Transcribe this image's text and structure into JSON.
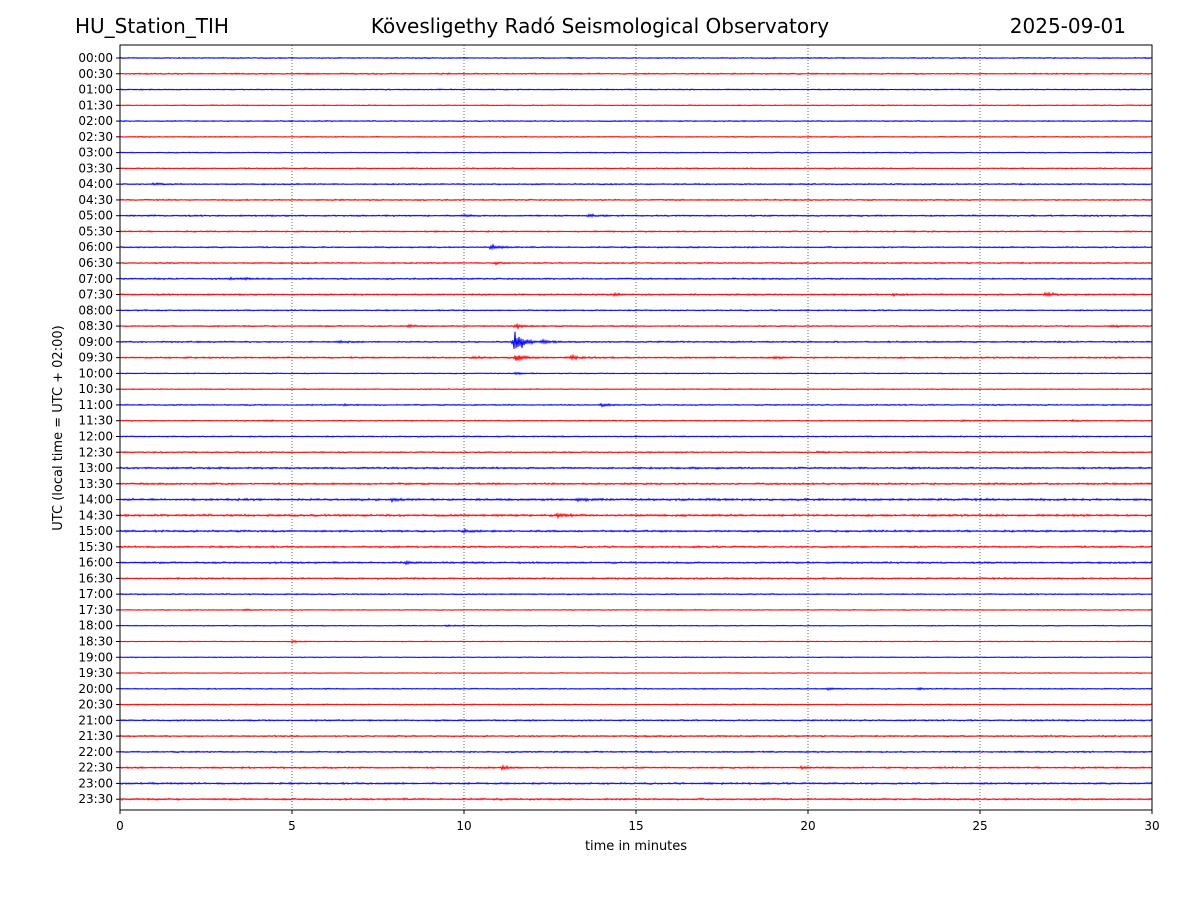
{
  "header": {
    "station": "HU_Station_TIH",
    "observatory": "Kövesligethy Radó Seismological Observatory",
    "date": "2025-09-01"
  },
  "chart_data": {
    "type": "line",
    "title": "Kövesligethy Radó Seismological Observatory",
    "xlabel": "time in minutes",
    "ylabel": "UTC (local time = UTC + 02:00)",
    "xlim": [
      0,
      30
    ],
    "x_ticks": [
      "0",
      "5",
      "10",
      "15",
      "20",
      "25",
      "30"
    ],
    "grid": "vertical dotted at x ticks",
    "colors": {
      "even_rows": "#0000ff",
      "odd_rows": "#ff0000",
      "grid": "#000000"
    },
    "rows": [
      {
        "label": "00:00",
        "noise": 0.45,
        "events": []
      },
      {
        "label": "00:30",
        "noise": 0.55,
        "events": []
      },
      {
        "label": "01:00",
        "noise": 0.45,
        "events": []
      },
      {
        "label": "01:30",
        "noise": 0.4,
        "events": []
      },
      {
        "label": "02:00",
        "noise": 0.45,
        "events": []
      },
      {
        "label": "02:30",
        "noise": 0.4,
        "events": []
      },
      {
        "label": "03:00",
        "noise": 0.4,
        "events": []
      },
      {
        "label": "03:30",
        "noise": 0.5,
        "events": []
      },
      {
        "label": "04:00",
        "noise": 0.55,
        "events": [
          {
            "t": 1.0,
            "a": 0.7
          }
        ]
      },
      {
        "label": "04:30",
        "noise": 0.55,
        "events": []
      },
      {
        "label": "05:00",
        "noise": 0.6,
        "events": [
          {
            "t": 10.0,
            "a": 0.8
          },
          {
            "t": 13.6,
            "a": 1.3
          }
        ]
      },
      {
        "label": "05:30",
        "noise": 0.55,
        "events": []
      },
      {
        "label": "06:00",
        "noise": 0.55,
        "events": [
          {
            "t": 10.8,
            "a": 2.0
          }
        ]
      },
      {
        "label": "06:30",
        "noise": 0.55,
        "events": [
          {
            "t": 10.9,
            "a": 1.2
          }
        ]
      },
      {
        "label": "07:00",
        "noise": 0.6,
        "events": [
          {
            "t": 3.2,
            "a": 1.0
          },
          {
            "t": 3.6,
            "a": 0.9
          }
        ]
      },
      {
        "label": "07:30",
        "noise": 0.6,
        "events": [
          {
            "t": 14.3,
            "a": 1.3
          },
          {
            "t": 22.5,
            "a": 1.2
          },
          {
            "t": 26.9,
            "a": 1.6
          }
        ]
      },
      {
        "label": "08:00",
        "noise": 0.5,
        "events": []
      },
      {
        "label": "08:30",
        "noise": 0.55,
        "events": [
          {
            "t": 8.4,
            "a": 1.6
          },
          {
            "t": 11.5,
            "a": 2.5
          },
          {
            "t": 28.8,
            "a": 1.0
          }
        ]
      },
      {
        "label": "09:00",
        "noise": 0.6,
        "events": [
          {
            "t": 11.45,
            "a": 9.0
          },
          {
            "t": 11.6,
            "a": 2.8
          },
          {
            "t": 12.3,
            "a": 2.2
          },
          {
            "t": 6.3,
            "a": 1.0
          }
        ]
      },
      {
        "label": "09:30",
        "noise": 0.65,
        "events": [
          {
            "t": 11.5,
            "a": 3.5
          },
          {
            "t": 13.1,
            "a": 2.2
          },
          {
            "t": 10.3,
            "a": 1.0
          },
          {
            "t": 19.0,
            "a": 1.0
          }
        ]
      },
      {
        "label": "10:00",
        "noise": 0.4,
        "events": [
          {
            "t": 11.5,
            "a": 1.0
          }
        ]
      },
      {
        "label": "10:30",
        "noise": 0.4,
        "events": []
      },
      {
        "label": "11:00",
        "noise": 0.5,
        "events": [
          {
            "t": 14.0,
            "a": 1.6
          },
          {
            "t": 6.5,
            "a": 0.6
          }
        ]
      },
      {
        "label": "11:30",
        "noise": 0.45,
        "events": [
          {
            "t": 4.2,
            "a": 1.0
          },
          {
            "t": 24.5,
            "a": 0.7
          },
          {
            "t": 27.7,
            "a": 0.8
          }
        ]
      },
      {
        "label": "12:00",
        "noise": 0.5,
        "events": []
      },
      {
        "label": "12:30",
        "noise": 0.55,
        "events": [
          {
            "t": 20.3,
            "a": 1.2
          }
        ]
      },
      {
        "label": "13:00",
        "noise": 0.75,
        "events": []
      },
      {
        "label": "13:30",
        "noise": 0.75,
        "events": []
      },
      {
        "label": "14:00",
        "noise": 0.85,
        "events": [
          {
            "t": 7.9,
            "a": 1.2
          },
          {
            "t": 13.3,
            "a": 1.1
          }
        ]
      },
      {
        "label": "14:30",
        "noise": 0.85,
        "events": [
          {
            "t": 12.7,
            "a": 1.8
          }
        ]
      },
      {
        "label": "15:00",
        "noise": 0.75,
        "events": [
          {
            "t": 10.0,
            "a": 1.3
          }
        ]
      },
      {
        "label": "15:30",
        "noise": 0.7,
        "events": []
      },
      {
        "label": "16:00",
        "noise": 0.7,
        "events": [
          {
            "t": 8.3,
            "a": 1.0
          }
        ]
      },
      {
        "label": "16:30",
        "noise": 0.65,
        "events": []
      },
      {
        "label": "17:00",
        "noise": 0.5,
        "events": []
      },
      {
        "label": "17:30",
        "noise": 0.4,
        "events": [
          {
            "t": 3.6,
            "a": 0.7
          }
        ]
      },
      {
        "label": "18:00",
        "noise": 0.35,
        "events": [
          {
            "t": 9.5,
            "a": 0.8
          }
        ]
      },
      {
        "label": "18:30",
        "noise": 0.35,
        "events": [
          {
            "t": 5.0,
            "a": 1.0
          }
        ]
      },
      {
        "label": "19:00",
        "noise": 0.35,
        "events": []
      },
      {
        "label": "19:30",
        "noise": 0.35,
        "events": []
      },
      {
        "label": "20:00",
        "noise": 0.45,
        "events": [
          {
            "t": 20.6,
            "a": 0.8
          },
          {
            "t": 23.2,
            "a": 0.6
          }
        ]
      },
      {
        "label": "20:30",
        "noise": 0.5,
        "events": []
      },
      {
        "label": "21:00",
        "noise": 0.6,
        "events": []
      },
      {
        "label": "21:30",
        "noise": 0.6,
        "events": []
      },
      {
        "label": "22:00",
        "noise": 0.6,
        "events": []
      },
      {
        "label": "22:30",
        "noise": 0.65,
        "events": [
          {
            "t": 11.1,
            "a": 1.8
          },
          {
            "t": 19.8,
            "a": 1.0
          }
        ]
      },
      {
        "label": "23:00",
        "noise": 0.7,
        "events": []
      },
      {
        "label": "23:30",
        "noise": 0.7,
        "events": []
      }
    ]
  }
}
